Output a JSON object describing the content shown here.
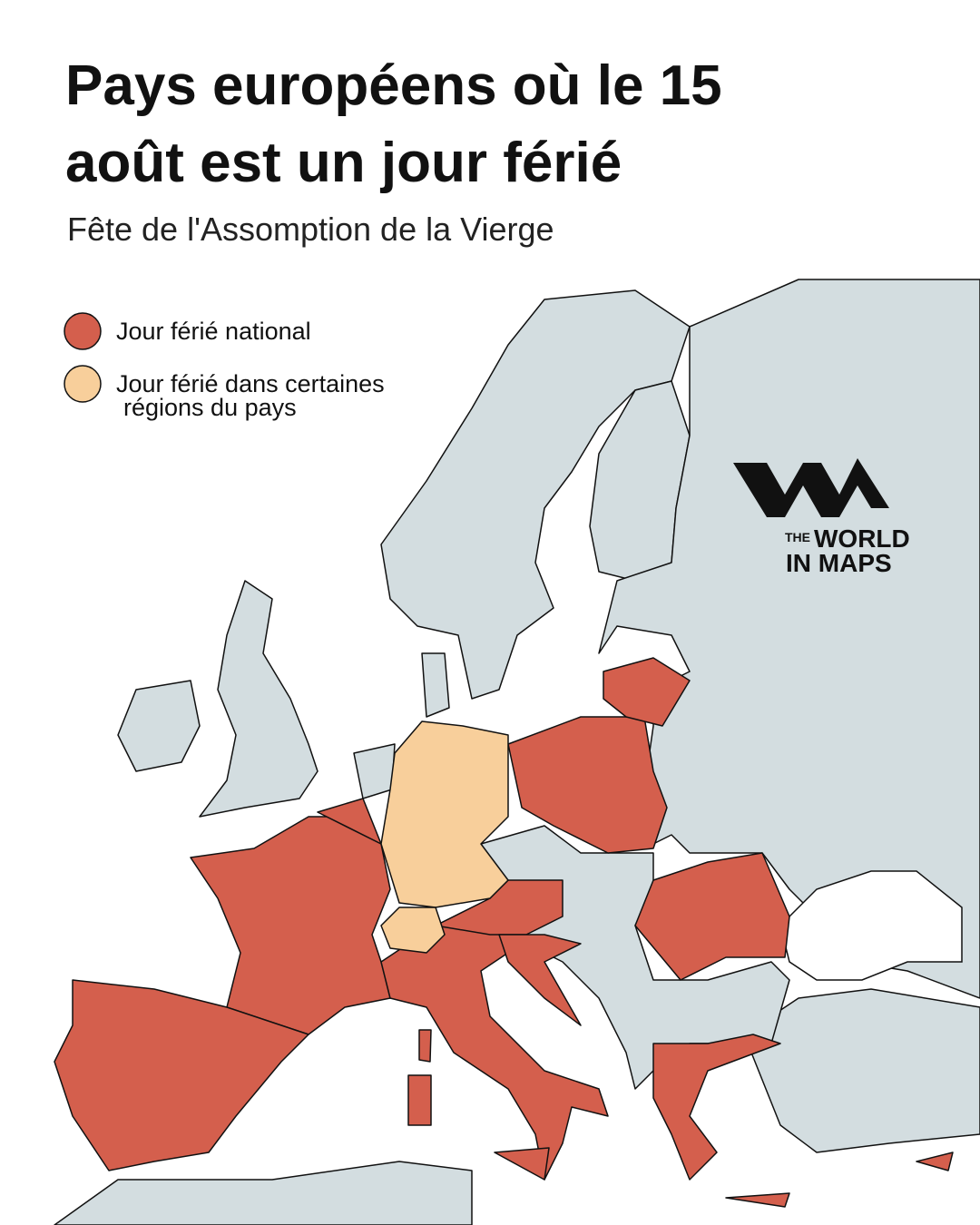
{
  "header": {
    "title_lines": [
      "Pays européens où le 15",
      "août est un jour férié"
    ],
    "subtitle": "Fête de l'Assomption de la Vierge"
  },
  "legend": [
    {
      "label_lines": [
        "Jour férié national"
      ],
      "color": "#d45f4d"
    },
    {
      "label_lines": [
        "Jour férié dans certaines",
        "régions du pays"
      ],
      "color": "#f8cf9b"
    }
  ],
  "logo": {
    "lines": [
      "THE",
      "WORLD",
      "IN MAPS"
    ]
  }
}
